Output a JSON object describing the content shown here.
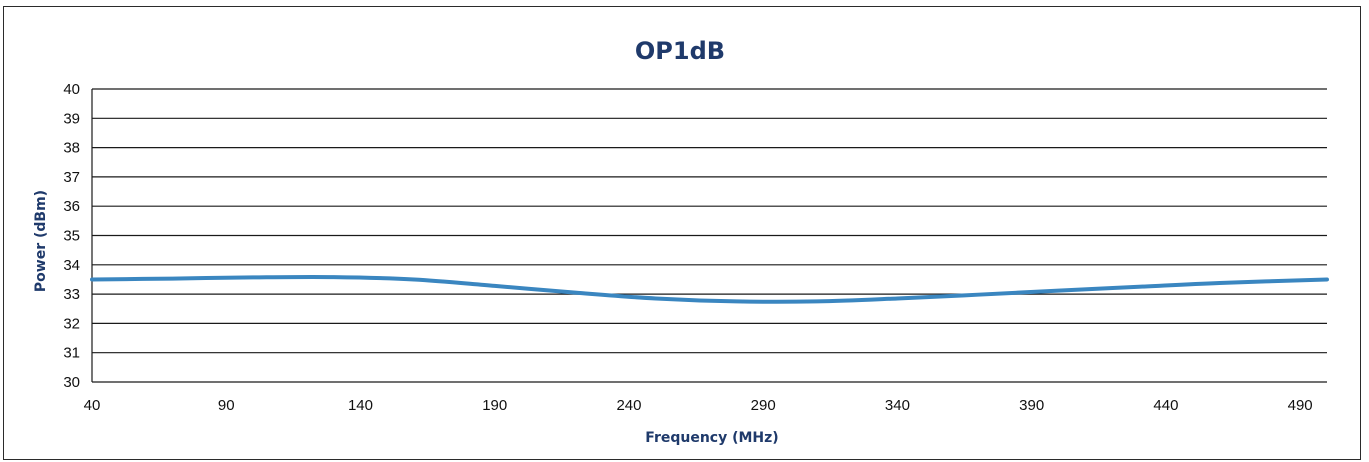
{
  "chart_data": {
    "type": "line",
    "title": "OP1dB",
    "xlabel": "Frequency (MHz)",
    "ylabel": "Power (dBm)",
    "xlim": [
      40,
      500
    ],
    "ylim": [
      30,
      40
    ],
    "x_ticks": [
      40,
      90,
      140,
      190,
      240,
      290,
      340,
      390,
      440,
      490
    ],
    "y_ticks": [
      30,
      31,
      32,
      33,
      34,
      35,
      36,
      37,
      38,
      39,
      40
    ],
    "grid": "horizontal",
    "legend": "none",
    "series": [
      {
        "x": [
          40,
          70,
          100,
          130,
          160,
          190,
          220,
          250,
          280,
          310,
          340,
          370,
          400,
          430,
          460,
          500
        ],
        "y": [
          33.5,
          33.53,
          33.57,
          33.58,
          33.5,
          33.28,
          33.05,
          32.85,
          32.75,
          32.75,
          32.85,
          32.98,
          33.12,
          33.25,
          33.38,
          33.5
        ],
        "color": "#3a86c0"
      }
    ],
    "colors": {
      "line": "#3a86c0",
      "grid": "#1a1a1a",
      "title": "#1f3a6b",
      "frame": "#2b2b2b"
    }
  }
}
